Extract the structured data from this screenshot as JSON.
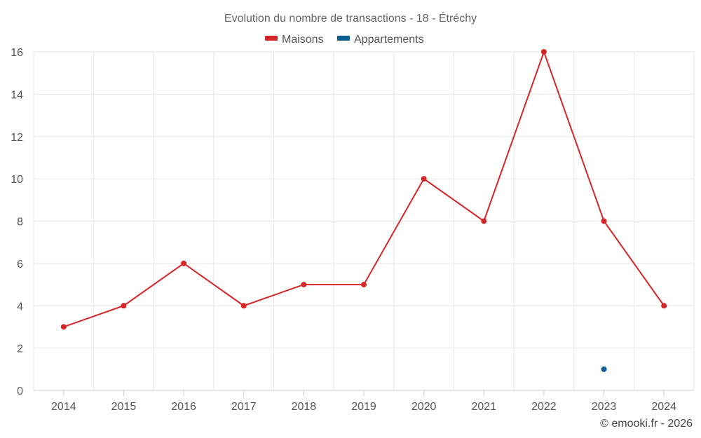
{
  "chart_data": {
    "type": "line",
    "title": "Evolution du nombre de transactions - 18 - Étréchy",
    "xlabel": "",
    "ylabel": "",
    "categories": [
      "2014",
      "2015",
      "2016",
      "2017",
      "2018",
      "2019",
      "2020",
      "2021",
      "2022",
      "2023",
      "2024"
    ],
    "ylim": [
      0,
      16
    ],
    "yticks": [
      0,
      2,
      4,
      6,
      8,
      10,
      12,
      14,
      16
    ],
    "grid": true,
    "legend_position": "top-center",
    "series": [
      {
        "name": "Maisons",
        "color": "#d62728",
        "values": [
          3,
          4,
          6,
          4,
          5,
          5,
          10,
          8,
          16,
          8,
          4
        ]
      },
      {
        "name": "Appartements",
        "color": "#0b5e94",
        "values": [
          null,
          null,
          null,
          null,
          null,
          null,
          null,
          null,
          null,
          1,
          null
        ]
      }
    ]
  },
  "credit": "© emooki.fr - 2026"
}
